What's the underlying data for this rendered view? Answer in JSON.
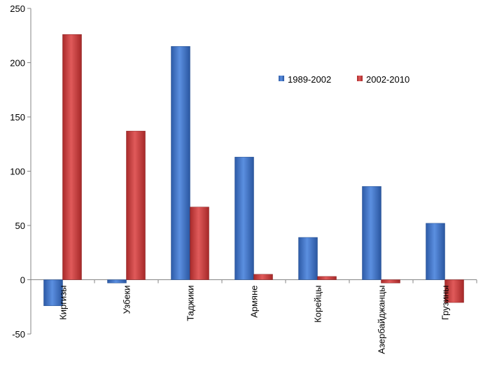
{
  "chart_data": {
    "type": "bar",
    "title": "",
    "xlabel": "",
    "ylabel": "",
    "categories": [
      "Киргизы",
      "Узбеки",
      "Таджики",
      "Армяне",
      "Корейцы",
      "Азербайджанцы",
      "Грузины"
    ],
    "series": [
      {
        "name": "1989-2002",
        "color": "#3a6fc4",
        "values": [
          -24,
          -3,
          215,
          113,
          39,
          86,
          52
        ]
      },
      {
        "name": "2002-2010",
        "color": "#c43a3a",
        "values": [
          226,
          137,
          67,
          5,
          3,
          -3,
          -21
        ]
      }
    ],
    "ylim": [
      -50,
      250
    ],
    "yticks": [
      -50,
      0,
      50,
      100,
      150,
      200,
      250
    ],
    "grid": false,
    "legend": "top-right"
  }
}
